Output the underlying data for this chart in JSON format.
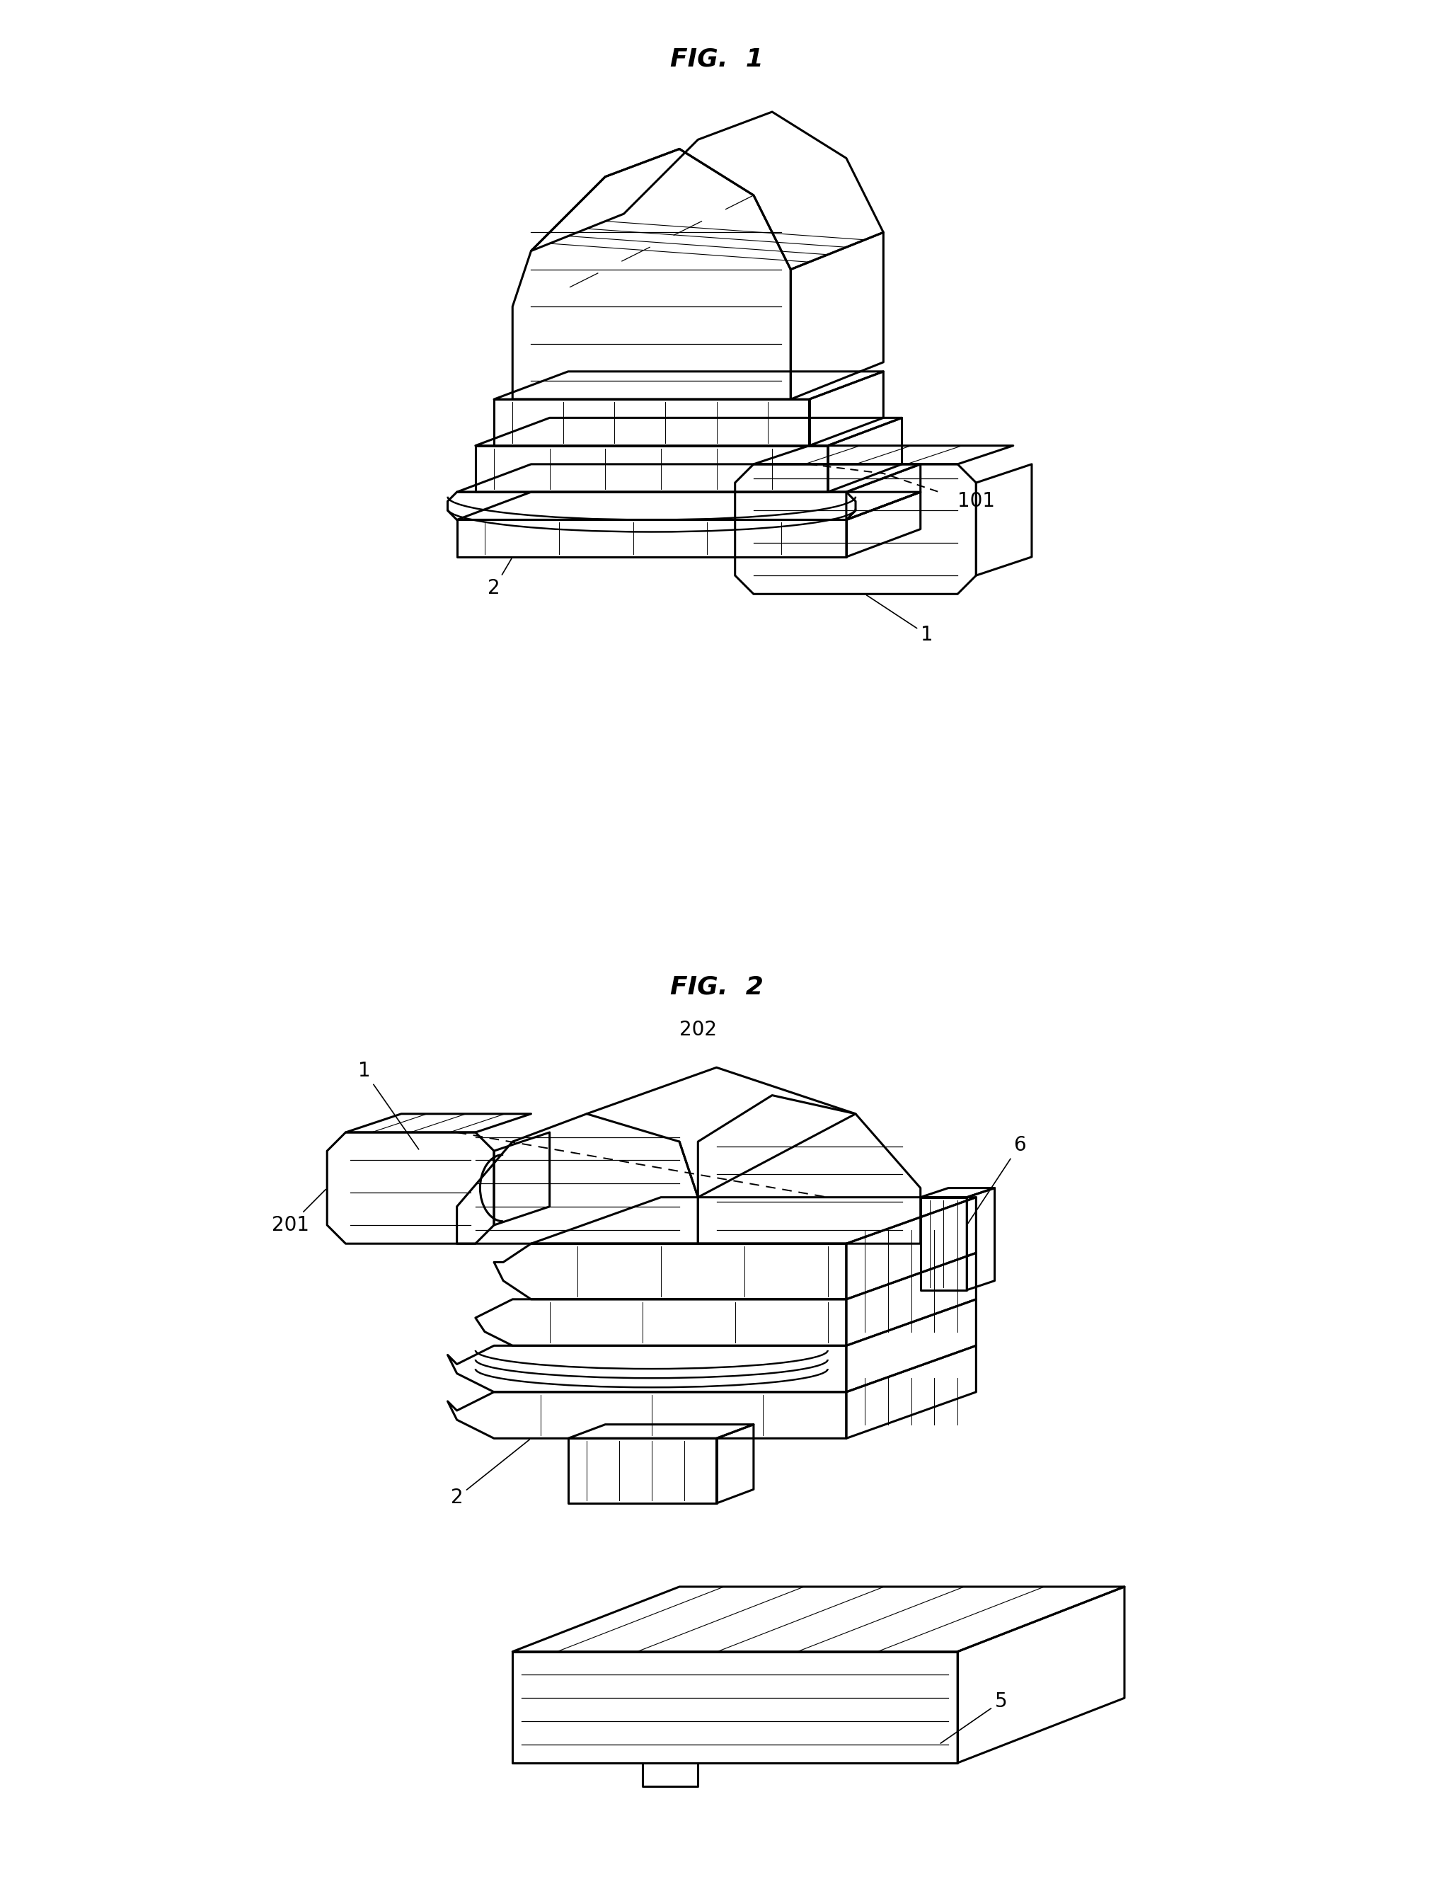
{
  "background_color": "#ffffff",
  "fig_width": 20.25,
  "fig_height": 26.62,
  "fig1_title": "FIG.  1",
  "fig2_title": "FIG.  2",
  "line_color": "#000000",
  "line_width": 2.2,
  "thin_lw": 1.0,
  "label_fontsize": 20,
  "title_fontsize": 26
}
